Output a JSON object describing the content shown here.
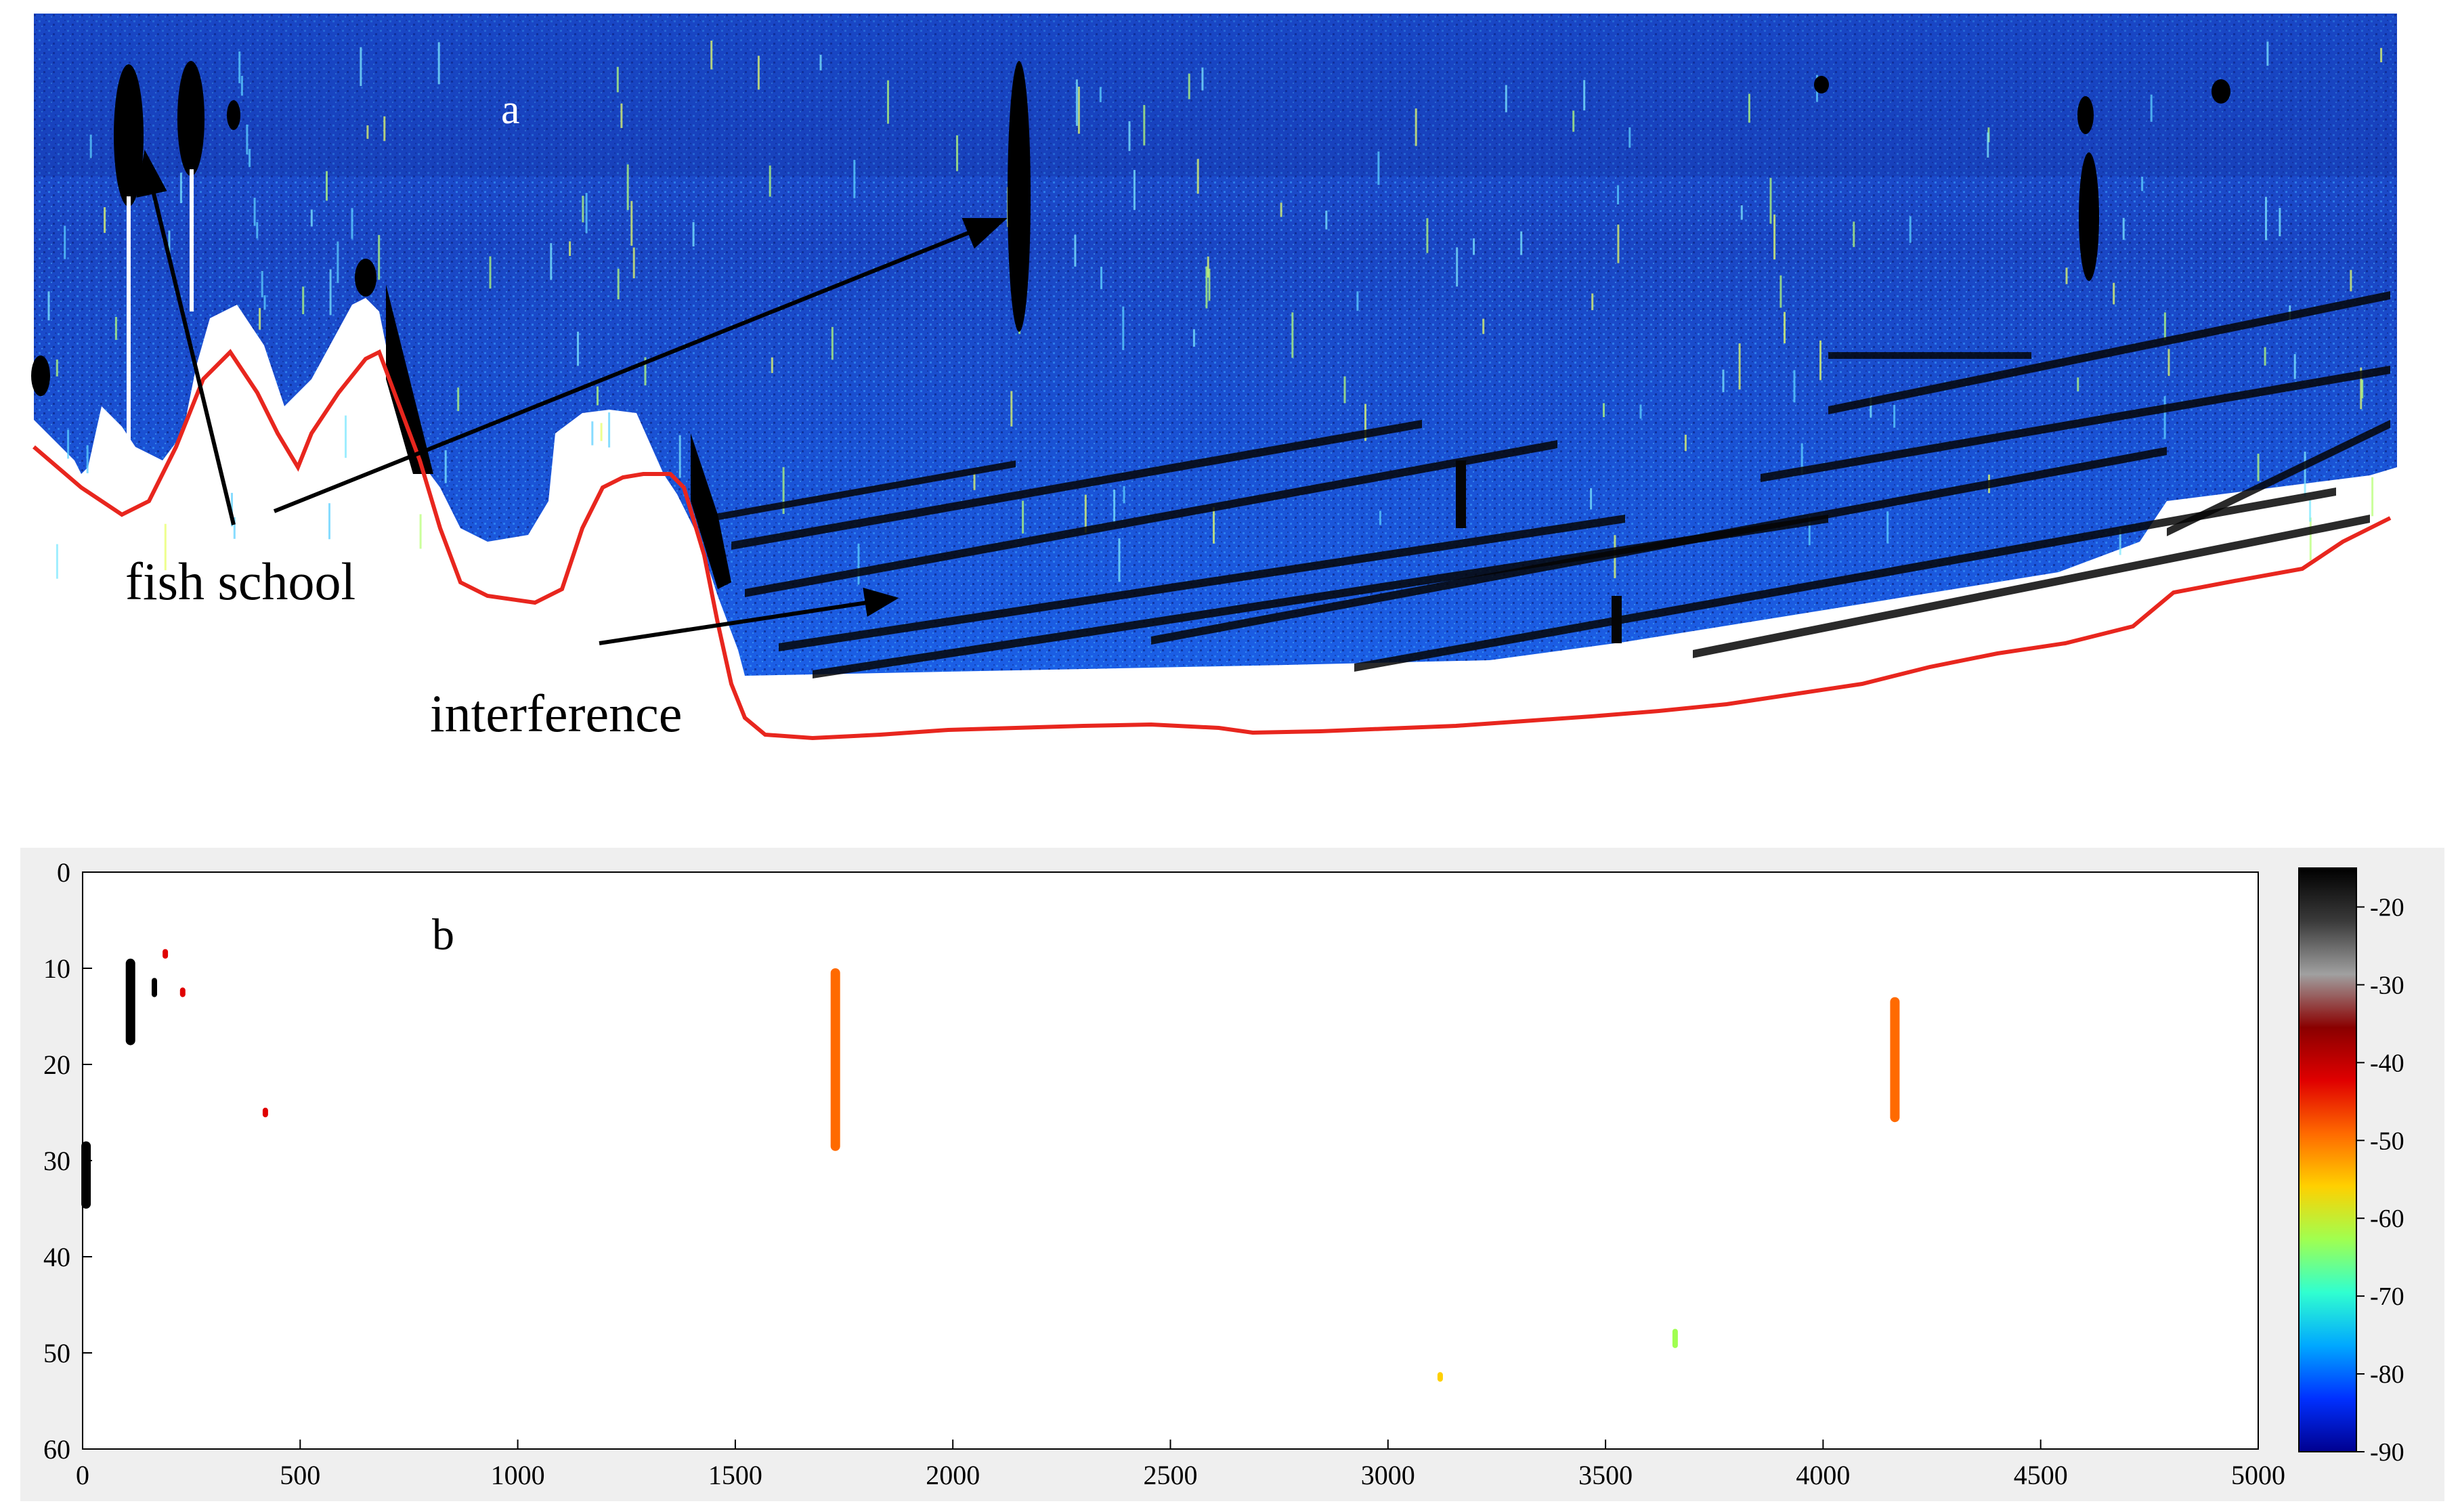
{
  "panel_a": {
    "label": "a",
    "annotations": {
      "fish_school": "fish school",
      "interference": "interference"
    },
    "colors": {
      "water_deep": "#0a2a9a",
      "water_mid": "#1450d8",
      "water_speckle": "#2a8cff",
      "bottom_line": "#e8261e",
      "targets": "#0a0a0a"
    }
  },
  "panel_b": {
    "label": "b"
  },
  "chart_data": {
    "type": "scatter",
    "title": "",
    "xlabel": "",
    "ylabel": "",
    "xlim": [
      0,
      5000
    ],
    "ylim": [
      60,
      0
    ],
    "x_ticks": [
      "0",
      "500",
      "1000",
      "1500",
      "2000",
      "2500",
      "3000",
      "3500",
      "4000",
      "4500",
      "5000"
    ],
    "y_ticks": [
      "0",
      "10",
      "20",
      "30",
      "40",
      "50",
      "60"
    ],
    "colorbar": {
      "ticks": [
        "-20",
        "-30",
        "-40",
        "-50",
        "-60",
        "-70",
        "-80",
        "-90"
      ],
      "range": [
        -90,
        -15
      ],
      "colors": [
        "#00008f",
        "#0030ff",
        "#00a8ff",
        "#30ffd0",
        "#a0ff50",
        "#ffd000",
        "#ff6a00",
        "#e00000",
        "#8a0000",
        "#a0a0a0",
        "#3a3a3a",
        "#000000"
      ]
    },
    "targets": [
      {
        "x": 8,
        "y_top": 28,
        "y_bottom": 35,
        "sv": -20
      },
      {
        "x": 110,
        "y_top": 9,
        "y_bottom": 18,
        "sv": -20
      },
      {
        "x": 165,
        "y_top": 11,
        "y_bottom": 13,
        "sv": -20
      },
      {
        "x": 190,
        "y_top": 8,
        "y_bottom": 9,
        "sv": -45
      },
      {
        "x": 230,
        "y_top": 12,
        "y_bottom": 13,
        "sv": -45
      },
      {
        "x": 420,
        "y_top": 24.5,
        "y_bottom": 25.5,
        "sv": -45
      },
      {
        "x": 1730,
        "y_top": 10,
        "y_bottom": 29,
        "sv": -48
      },
      {
        "x": 3120,
        "y_top": 52,
        "y_bottom": 53,
        "sv": -55
      },
      {
        "x": 3660,
        "y_top": 47.5,
        "y_bottom": 49.5,
        "sv": -65
      },
      {
        "x": 4165,
        "y_top": 13,
        "y_bottom": 26,
        "sv": -50
      }
    ]
  }
}
